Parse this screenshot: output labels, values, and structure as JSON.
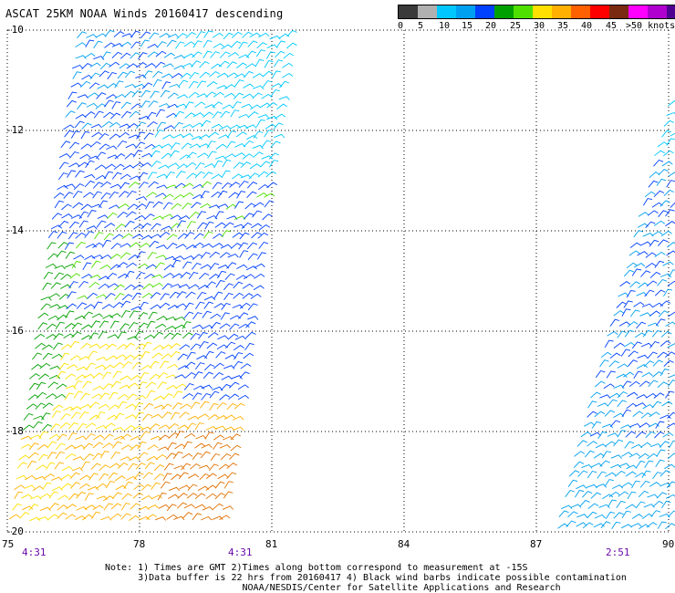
{
  "title": "ASCAT 25KM NOAA Winds 20160417 descending",
  "legend": {
    "colors": [
      "#3a3a3a",
      "#b0b0b0",
      "#00c8ff",
      "#00a0f0",
      "#0040ff",
      "#00a000",
      "#50e000",
      "#ffe000",
      "#ffb000",
      "#ff6000",
      "#ff0000",
      "#7a2a10",
      "#ff00ff",
      "#b000d0",
      "#500090"
    ],
    "labels": [
      "0",
      "5",
      "10",
      "15",
      "20",
      "25",
      "30",
      "35",
      "40",
      "45",
      ">50 knots"
    ]
  },
  "map": {
    "lat_labels": [
      "-10",
      "-12",
      "-14",
      "-16",
      "-18",
      "-20"
    ],
    "lon_labels": [
      "75",
      "78",
      "81",
      "84",
      "87",
      "90"
    ],
    "time_labels": [
      "4:31",
      "4:31",
      "2:51"
    ],
    "lat_range": [
      -10,
      -20
    ],
    "lon_range": [
      75,
      90
    ]
  },
  "notes": {
    "line1": "Note: 1) Times are GMT 2)Times along bottom correspond to measurement at -15S",
    "line2": "      3)Data buffer is 22 hrs from 20160417 4) Black wind barbs indicate possible contamination",
    "line3": "                         NOAA/NESDIS/Center for Satellite Applications and Research"
  }
}
